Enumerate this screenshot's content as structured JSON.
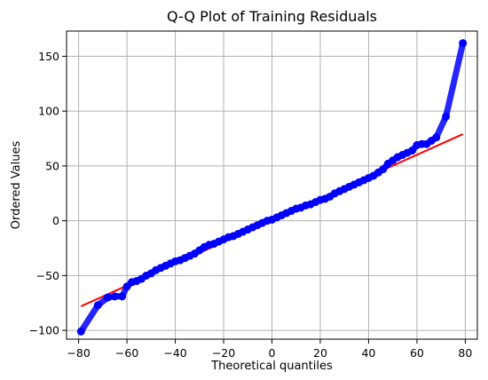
{
  "chart_data": {
    "type": "scatter",
    "title": "Q-Q Plot of Training Residuals",
    "xlabel": "Theoretical quantiles",
    "ylabel": "Ordered Values",
    "xlim": [
      -85,
      85
    ],
    "ylim": [
      -108,
      173
    ],
    "xticks": [
      -80,
      -60,
      -40,
      -20,
      0,
      20,
      40,
      60,
      80
    ],
    "yticks": [
      -100,
      -50,
      0,
      50,
      100,
      150
    ],
    "grid": true,
    "colors": {
      "points": "#0000ff",
      "fit_line": "#ff0000"
    },
    "series": [
      {
        "kind": "points",
        "x": [
          -79,
          -72,
          -68,
          -65,
          -62,
          -60,
          -58,
          -56,
          -54,
          -52,
          -50,
          -48,
          -46,
          -44,
          -42,
          -40,
          -38,
          -36,
          -34,
          -32,
          -30,
          -28,
          -26,
          -24,
          -22,
          -20,
          -18,
          -16,
          -14,
          -12,
          -10,
          -8,
          -6,
          -4,
          -2,
          0,
          2,
          4,
          6,
          8,
          10,
          12,
          14,
          16,
          18,
          20,
          22,
          24,
          26,
          28,
          30,
          32,
          34,
          36,
          38,
          40,
          42,
          44,
          46,
          48,
          50,
          52,
          54,
          56,
          58,
          60,
          62,
          64,
          66,
          68,
          72,
          79
        ],
        "y": [
          -101,
          -77,
          -70,
          -69,
          -69,
          -60,
          -56,
          -55,
          -53,
          -50,
          -48,
          -45,
          -43,
          -41,
          -39,
          -37,
          -36,
          -34,
          -32,
          -30,
          -27,
          -24,
          -22,
          -21,
          -19,
          -17,
          -15,
          -14,
          -12,
          -10,
          -8,
          -6,
          -4,
          -2,
          0,
          1,
          3,
          5,
          7,
          9,
          11,
          12,
          14,
          15,
          17,
          19,
          20,
          22,
          25,
          27,
          29,
          31,
          33,
          35,
          37,
          39,
          41,
          44,
          47,
          52,
          55,
          58,
          60,
          62,
          64,
          69,
          70,
          70,
          73,
          76,
          95,
          162
        ]
      },
      {
        "kind": "fit_line",
        "x": [
          -79,
          79
        ],
        "y": [
          -78,
          79
        ]
      }
    ]
  }
}
